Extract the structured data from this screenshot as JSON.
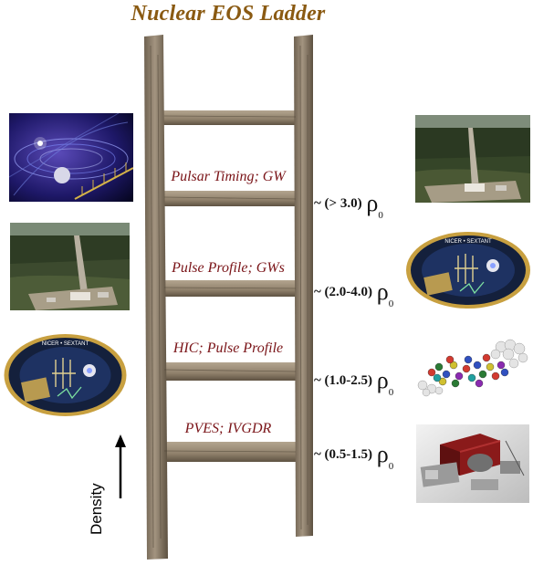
{
  "title": "Nuclear EOS Ladder",
  "rungs": [
    {
      "label": "Pulsar Timing; GW",
      "range": "~ (> 3.0) "
    },
    {
      "label": "Pulse Profile; GWs",
      "range": "~ (2.0-4.0) "
    },
    {
      "label": "HIC; Pulse Profile",
      "range": "~ (1.0-2.5) "
    },
    {
      "label": "PVES; IVGDR",
      "range": "~ (0.5-1.5) "
    }
  ],
  "density_symbol": "ρ",
  "density_subscript": "0",
  "axis_label": "Density",
  "icons": {
    "pulsar": "pulsar-icon",
    "observatory": "gw-observatory-icon",
    "nicer": "nicer-patch-icon",
    "collision": "heavy-ion-collision-icon",
    "spectrometer": "spectrometer-icon"
  },
  "patch_text": "NICER • SEXTANT",
  "colors": {
    "title": "#8a5a12",
    "rung_label": "#7a1418",
    "wood": "#8b7b66"
  }
}
